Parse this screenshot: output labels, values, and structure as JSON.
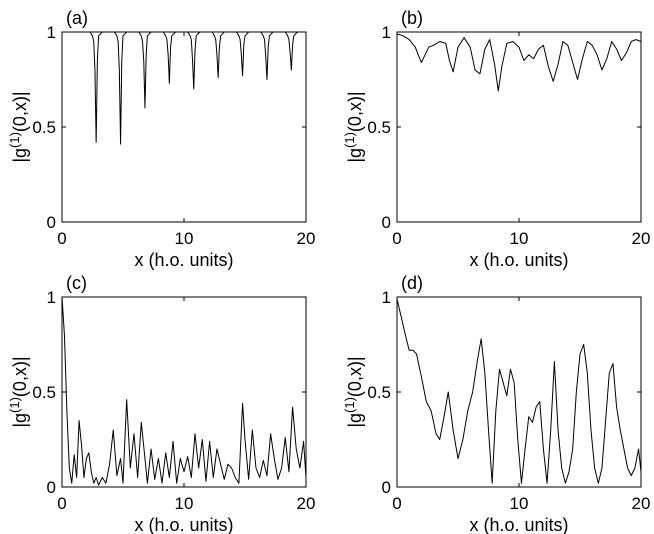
{
  "chart_data": [
    {
      "type": "line",
      "panel_label": "(a)",
      "xlabel": "x (h.o. units)",
      "ylabel": "|g^{(1)}(0,x)|",
      "xlim": [
        0,
        20
      ],
      "ylim": [
        0,
        1
      ],
      "xticks": [
        0,
        10,
        20
      ],
      "yticks": [
        0,
        0.5,
        1
      ],
      "xtick_labels": [
        "0",
        "10",
        "20"
      ],
      "ytick_labels": [
        "0",
        "0.5",
        "1"
      ],
      "grid": false,
      "series": [
        {
          "x": [
            0,
            2.3,
            2.5,
            2.6,
            2.7,
            2.8,
            2.9,
            3.0,
            3.3,
            4.3,
            4.5,
            4.6,
            4.7,
            4.8,
            4.9,
            5.0,
            5.3,
            6.3,
            6.5,
            6.6,
            6.7,
            6.8,
            6.9,
            7.0,
            7.3,
            8.3,
            8.5,
            8.6,
            8.7,
            8.8,
            8.9,
            9.0,
            9.3,
            10.3,
            10.5,
            10.6,
            10.7,
            10.8,
            10.9,
            11.0,
            11.3,
            12.3,
            12.5,
            12.6,
            12.7,
            12.8,
            12.9,
            13.0,
            13.3,
            14.3,
            14.5,
            14.6,
            14.7,
            14.8,
            14.9,
            15.0,
            15.3,
            16.3,
            16.5,
            16.6,
            16.7,
            16.8,
            16.9,
            17.0,
            17.3,
            18.3,
            18.5,
            18.6,
            18.7,
            18.8,
            18.9,
            19.0,
            19.3,
            20
          ],
          "y": [
            1,
            1,
            0.98,
            0.95,
            0.8,
            0.42,
            0.85,
            0.98,
            1,
            1,
            0.98,
            0.95,
            0.8,
            0.41,
            0.85,
            0.98,
            1,
            1,
            0.98,
            0.95,
            0.85,
            0.6,
            0.88,
            0.98,
            1,
            1,
            0.98,
            0.96,
            0.88,
            0.73,
            0.92,
            0.98,
            1,
            1,
            0.98,
            0.96,
            0.85,
            0.7,
            0.9,
            0.98,
            1,
            1,
            0.98,
            0.96,
            0.88,
            0.76,
            0.92,
            0.98,
            1,
            1,
            0.98,
            0.96,
            0.88,
            0.77,
            0.93,
            0.98,
            1,
            1,
            0.98,
            0.96,
            0.87,
            0.75,
            0.92,
            0.98,
            1,
            1,
            0.98,
            0.96,
            0.89,
            0.8,
            0.93,
            0.98,
            1,
            1
          ]
        }
      ]
    },
    {
      "type": "line",
      "panel_label": "(b)",
      "xlabel": "x (h.o. units)",
      "ylabel": "|g^{(1)}(0,x)|",
      "xlim": [
        0,
        20
      ],
      "ylim": [
        0,
        1
      ],
      "xticks": [
        0,
        10,
        20
      ],
      "yticks": [
        0,
        0.5,
        1
      ],
      "xtick_labels": [
        "0",
        "10",
        "20"
      ],
      "ytick_labels": [
        "0",
        "0.5",
        "1"
      ],
      "grid": false,
      "series": [
        {
          "x": [
            0,
            0.5,
            1.0,
            1.5,
            1.8,
            2.0,
            2.3,
            2.6,
            3.0,
            3.5,
            4.0,
            4.3,
            4.6,
            5.0,
            5.5,
            6.0,
            6.4,
            6.8,
            7.2,
            7.6,
            8.0,
            8.3,
            8.6,
            9.0,
            9.5,
            10.0,
            10.4,
            10.8,
            11.2,
            11.6,
            12.0,
            12.4,
            12.8,
            13.2,
            13.6,
            14.0,
            14.4,
            14.8,
            15.2,
            15.6,
            16.0,
            16.4,
            16.8,
            17.2,
            17.6,
            18.0,
            18.4,
            18.8,
            19.2,
            19.6,
            20
          ],
          "y": [
            0.99,
            0.98,
            0.96,
            0.92,
            0.87,
            0.84,
            0.88,
            0.92,
            0.93,
            0.95,
            0.94,
            0.85,
            0.79,
            0.92,
            0.97,
            0.92,
            0.8,
            0.78,
            0.91,
            0.96,
            0.83,
            0.69,
            0.82,
            0.94,
            0.95,
            0.92,
            0.85,
            0.88,
            0.86,
            0.91,
            0.93,
            0.82,
            0.74,
            0.83,
            0.95,
            0.93,
            0.84,
            0.75,
            0.86,
            0.95,
            0.93,
            0.88,
            0.8,
            0.86,
            0.95,
            0.91,
            0.85,
            0.89,
            0.95,
            0.96,
            0.95
          ]
        }
      ]
    },
    {
      "type": "line",
      "panel_label": "(c)",
      "xlabel": "x (h.o. units)",
      "ylabel": "|g^{(1)}(0,x)|",
      "xlim": [
        0,
        20
      ],
      "ylim": [
        0,
        1
      ],
      "xticks": [
        0,
        10,
        20
      ],
      "yticks": [
        0,
        0.5,
        1
      ],
      "xtick_labels": [
        "0",
        "10",
        "20"
      ],
      "ytick_labels": [
        "0",
        "0.5",
        "1"
      ],
      "grid": false,
      "series": [
        {
          "x": [
            0,
            0.2,
            0.4,
            0.6,
            0.8,
            1.0,
            1.2,
            1.4,
            1.6,
            1.8,
            2.0,
            2.2,
            2.4,
            2.6,
            2.8,
            3.0,
            3.3,
            3.6,
            3.9,
            4.2,
            4.5,
            4.8,
            5.0,
            5.3,
            5.6,
            5.9,
            6.2,
            6.5,
            6.8,
            7.0,
            7.3,
            7.6,
            7.9,
            8.2,
            8.5,
            8.8,
            9.1,
            9.4,
            9.7,
            10.0,
            10.3,
            10.6,
            10.9,
            11.2,
            11.5,
            11.8,
            12.1,
            12.4,
            12.7,
            13.0,
            13.3,
            13.6,
            13.9,
            14.2,
            14.5,
            14.8,
            15.0,
            15.3,
            15.6,
            15.9,
            16.2,
            16.5,
            16.8,
            17.1,
            17.4,
            17.7,
            18.0,
            18.3,
            18.6,
            18.9,
            19.2,
            19.5,
            19.8,
            20
          ],
          "y": [
            1.0,
            0.8,
            0.4,
            0.1,
            0.02,
            0.17,
            0.05,
            0.35,
            0.22,
            0.05,
            0.15,
            0.18,
            0.08,
            0.02,
            0.05,
            0.01,
            0.05,
            0.02,
            0.12,
            0.3,
            0.06,
            0.15,
            0.02,
            0.46,
            0.1,
            0.28,
            0.05,
            0.34,
            0.15,
            0.02,
            0.2,
            0.04,
            0.15,
            0.02,
            0.18,
            0.05,
            0.24,
            0.02,
            0.15,
            0.08,
            0.16,
            0.05,
            0.28,
            0.1,
            0.25,
            0.03,
            0.24,
            0.05,
            0.2,
            0.12,
            0.04,
            0.12,
            0.1,
            0.05,
            0.02,
            0.44,
            0.25,
            0.04,
            0.3,
            0.1,
            0.05,
            0.14,
            0.06,
            0.28,
            0.15,
            0.04,
            0.1,
            0.26,
            0.08,
            0.42,
            0.2,
            0.1,
            0.24,
            0.05
          ]
        }
      ]
    },
    {
      "type": "line",
      "panel_label": "(d)",
      "xlabel": "x (h.o. units)",
      "ylabel": "|g^{(1)}(0,x)|",
      "xlim": [
        0,
        20
      ],
      "ylim": [
        0,
        1
      ],
      "xticks": [
        0,
        10,
        20
      ],
      "yticks": [
        0,
        0.5,
        1
      ],
      "xtick_labels": [
        "0",
        "10",
        "20"
      ],
      "ytick_labels": [
        "0",
        "0.5",
        "1"
      ],
      "grid": false,
      "series": [
        {
          "x": [
            0,
            0.4,
            0.8,
            1.0,
            1.3,
            1.6,
            2.0,
            2.4,
            2.8,
            3.2,
            3.5,
            3.8,
            4.2,
            4.6,
            5.0,
            5.4,
            5.8,
            6.2,
            6.6,
            6.9,
            7.2,
            7.5,
            7.8,
            8.1,
            8.4,
            8.7,
            9.0,
            9.3,
            9.6,
            9.9,
            10.2,
            10.5,
            10.8,
            11.1,
            11.4,
            11.7,
            12.0,
            12.3,
            12.6,
            12.9,
            13.2,
            13.5,
            13.8,
            14.1,
            14.4,
            14.7,
            15.0,
            15.3,
            15.6,
            15.9,
            16.2,
            16.5,
            16.8,
            17.1,
            17.4,
            17.7,
            18.0,
            18.3,
            18.6,
            18.9,
            19.2,
            19.5,
            19.8,
            20
          ],
          "y": [
            0.99,
            0.88,
            0.77,
            0.72,
            0.72,
            0.7,
            0.58,
            0.45,
            0.4,
            0.28,
            0.25,
            0.35,
            0.5,
            0.3,
            0.15,
            0.25,
            0.4,
            0.5,
            0.67,
            0.78,
            0.6,
            0.3,
            0.02,
            0.4,
            0.62,
            0.55,
            0.48,
            0.62,
            0.55,
            0.25,
            0.02,
            0.2,
            0.37,
            0.34,
            0.42,
            0.45,
            0.2,
            0.02,
            0.3,
            0.66,
            0.3,
            0.1,
            0.02,
            0.08,
            0.2,
            0.5,
            0.7,
            0.75,
            0.6,
            0.3,
            0.1,
            0.02,
            0.1,
            0.35,
            0.6,
            0.65,
            0.42,
            0.3,
            0.2,
            0.1,
            0.06,
            0.1,
            0.2,
            0.08
          ]
        }
      ]
    }
  ]
}
